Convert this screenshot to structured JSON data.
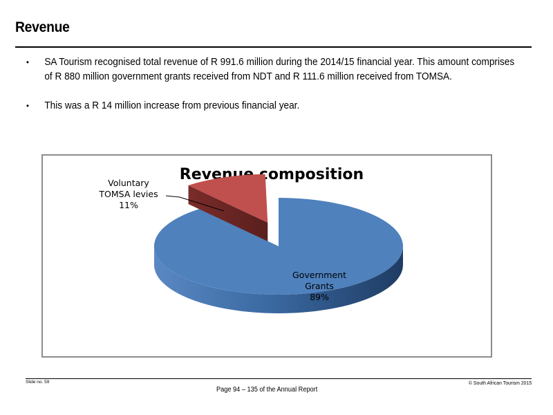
{
  "slide": {
    "title": "Revenue",
    "bullets": [
      "SA Tourism recognised total revenue of R 991.6 million during the 2014/15 financial year. This amount comprises of R 880 million government grants received from NDT and R 111.6 million received from TOMSA.",
      "This was a R 14 million increase from previous financial year."
    ]
  },
  "chart_data": {
    "type": "pie",
    "title": "Revenue composition",
    "three_d": true,
    "exploded_slice": "Voluntary TOMSA levies",
    "slices": [
      {
        "label": "Government Grants",
        "value": 89,
        "display": "89%",
        "color": "#4f81bd"
      },
      {
        "label": "Voluntary TOMSA levies",
        "value": 11,
        "display": "11%",
        "color": "#c0504d"
      }
    ]
  },
  "footer": {
    "slide_no": "Slide no. 59",
    "page_ref": "Page 94 – 135 of the Annual Report",
    "copyright": "© South African Tourism 2015"
  }
}
